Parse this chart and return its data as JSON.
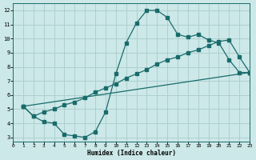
{
  "xlabel": "Humidex (Indice chaleur)",
  "xlim": [
    0,
    23
  ],
  "ylim": [
    2.7,
    12.5
  ],
  "yticks": [
    3,
    4,
    5,
    6,
    7,
    8,
    9,
    10,
    11,
    12
  ],
  "xticks": [
    0,
    1,
    2,
    3,
    4,
    5,
    6,
    7,
    8,
    9,
    10,
    11,
    12,
    13,
    14,
    15,
    16,
    17,
    18,
    19,
    20,
    21,
    22,
    23
  ],
  "bg_color": "#cce8e8",
  "line_color": "#1a6b6b",
  "grid_color": "#aacccc",
  "line1_x": [
    1,
    2,
    3,
    4,
    5,
    6,
    7,
    8,
    9,
    10,
    11,
    12,
    13,
    14,
    15,
    16,
    17,
    18,
    19,
    20,
    21,
    22,
    23
  ],
  "line1_y": [
    5.2,
    4.5,
    4.1,
    4.0,
    3.2,
    3.1,
    3.0,
    3.4,
    4.8,
    7.5,
    9.7,
    11.1,
    12.0,
    12.0,
    11.5,
    10.3,
    10.1,
    10.3,
    9.9,
    9.7,
    8.5,
    7.6,
    7.6
  ],
  "line2_x": [
    1,
    2,
    3,
    4,
    5,
    6,
    7,
    8,
    9,
    10,
    11,
    12,
    13,
    14,
    15,
    16,
    17,
    18,
    19,
    20,
    21,
    22,
    23
  ],
  "line2_y": [
    5.2,
    4.5,
    4.8,
    5.0,
    5.3,
    5.5,
    5.8,
    6.2,
    6.5,
    6.8,
    7.2,
    7.5,
    7.8,
    8.2,
    8.5,
    8.7,
    9.0,
    9.2,
    9.5,
    9.8,
    9.9,
    8.7,
    7.6
  ],
  "line3_x": [
    1,
    23
  ],
  "line3_y": [
    5.2,
    7.6
  ]
}
